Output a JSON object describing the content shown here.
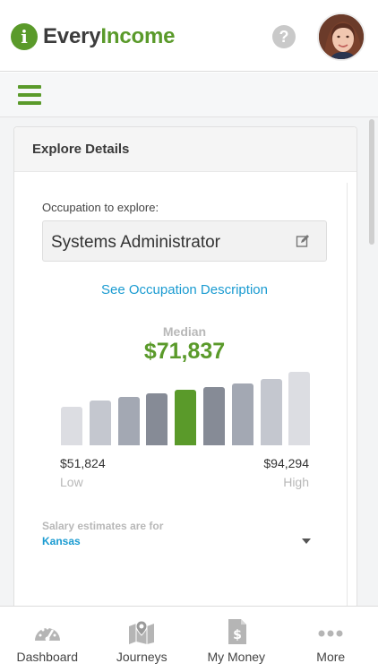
{
  "header": {
    "logo_every": "Every",
    "logo_income": "Income",
    "logo_badge": "i",
    "help_icon": "question-circle-icon",
    "avatar": "user-avatar"
  },
  "menu": {
    "icon": "hamburger-icon"
  },
  "card": {
    "title": "Explore Details",
    "occupation_label": "Occupation to explore:",
    "occupation_value": "Systems Administrator",
    "edit_icon": "edit-icon",
    "description_link": "See Occupation Description",
    "median_label": "Median",
    "median_value": "$71,837",
    "low_value": "$51,824",
    "low_label": "Low",
    "high_value": "$94,294",
    "high_label": "High",
    "estimates_label": "Salary estimates are for",
    "state_value": "Kansas"
  },
  "chart_data": {
    "type": "bar",
    "categories": [
      "1",
      "2",
      "3",
      "4",
      "5",
      "6",
      "7",
      "8",
      "9"
    ],
    "values": [
      0.53,
      0.61,
      0.66,
      0.71,
      0.76,
      0.79,
      0.84,
      0.9,
      1.0
    ],
    "highlight_index": 4,
    "colors": [
      "#dcdde2",
      "#c4c7cf",
      "#a3a8b3",
      "#868b96",
      "#5a9a2a",
      "#868b96",
      "#a3a8b3",
      "#c4c7cf",
      "#dcdde2"
    ]
  },
  "colors": {
    "brand_green": "#5a9a2a",
    "link_blue": "#1a9bd1",
    "muted_text": "#b8b8b8"
  },
  "nav": {
    "items": [
      {
        "label": "Dashboard",
        "icon": "speedometer-icon"
      },
      {
        "label": "Journeys",
        "icon": "map-pin-icon"
      },
      {
        "label": "My Money",
        "icon": "dollar-document-icon"
      },
      {
        "label": "More",
        "icon": "ellipsis-icon"
      }
    ]
  }
}
